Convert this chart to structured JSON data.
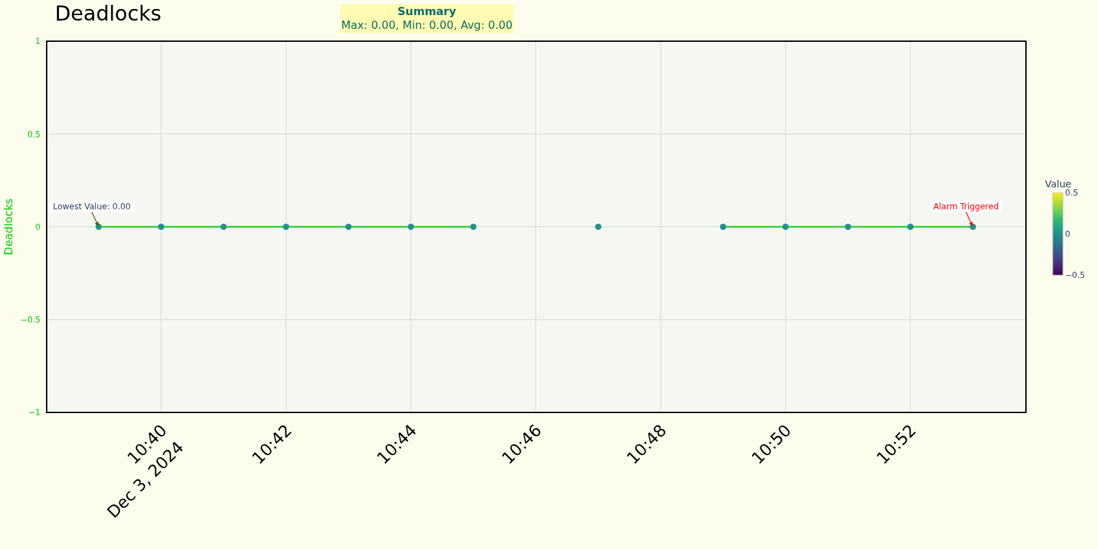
{
  "chart_data": {
    "type": "line",
    "title": "Deadlocks",
    "ylabel": "Deadlocks",
    "clabel": "Value",
    "x": [
      "2024-12-03T10:39",
      "2024-12-03T10:40",
      "2024-12-03T10:41",
      "2024-12-03T10:42",
      "2024-12-03T10:43",
      "2024-12-03T10:44",
      "2024-12-03T10:45",
      "2024-12-03T10:46",
      "2024-12-03T10:47",
      "2024-12-03T10:48",
      "2024-12-03T10:49",
      "2024-12-03T10:50",
      "2024-12-03T10:51",
      "2024-12-03T10:52",
      "2024-12-03T10:53"
    ],
    "series": [
      {
        "color": "#00cc00",
        "line_style": "solid",
        "values": [
          0,
          0,
          0,
          0,
          0,
          0,
          0,
          null,
          null,
          null,
          0,
          0,
          0,
          0,
          0
        ]
      },
      {
        "type": "scatter",
        "marker": "circle",
        "values": [
          0,
          0,
          0,
          0,
          0,
          0,
          0,
          null,
          0,
          null,
          0,
          0,
          0,
          0,
          0
        ],
        "cvalues": [
          0,
          0,
          0,
          0,
          0,
          0,
          0,
          null,
          0,
          null,
          0,
          0,
          0,
          0,
          0
        ]
      }
    ],
    "grid": true,
    "xlim": [
      "2024-12-03T10:38:10",
      "2024-12-03T10:53:51"
    ],
    "xticks": [
      {
        "value": "2024-12-03T10:40",
        "label": "10:40\nDec 3, 2024"
      },
      {
        "value": "2024-12-03T10:42",
        "label": "10:42"
      },
      {
        "value": "2024-12-03T10:44",
        "label": "10:44"
      },
      {
        "value": "2024-12-03T10:46",
        "label": "10:46"
      },
      {
        "value": "2024-12-03T10:48",
        "label": "10:48"
      },
      {
        "value": "2024-12-03T10:50",
        "label": "10:50"
      },
      {
        "value": "2024-12-03T10:52",
        "label": "10:52"
      }
    ],
    "ylim": [
      -1,
      1
    ],
    "yticks": [
      -1,
      -0.5,
      0,
      0.5,
      1
    ],
    "clim": [
      -0.5,
      0.5
    ],
    "cticks": [
      -0.5,
      0,
      0.5
    ],
    "annotations": [
      "Summary",
      "Max: 0.00, Min: 0.00, Avg: 0.00",
      {
        "text": "Lowest Value: 0.00",
        "x": "2024-12-03T10:39",
        "y": 0
      },
      {
        "text": "Alarm Triggered",
        "x": "2024-12-03T10:53",
        "y": 0
      }
    ]
  }
}
